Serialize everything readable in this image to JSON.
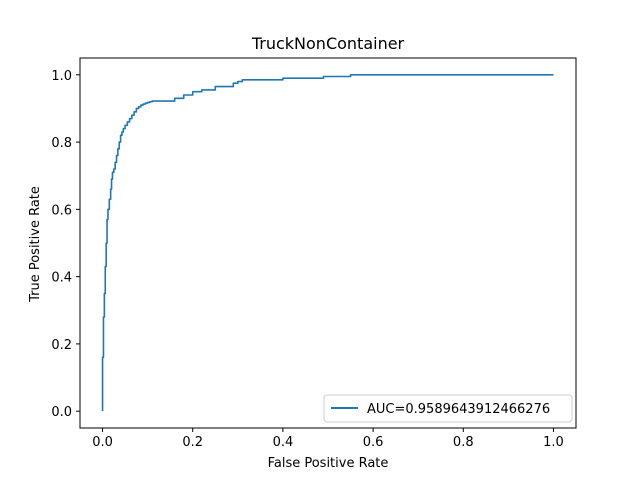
{
  "chart_data": {
    "type": "line",
    "title": "TruckNonContainer",
    "xlabel": "False Positive Rate",
    "ylabel": "True Positive Rate",
    "xlim": [
      -0.05,
      1.05
    ],
    "ylim": [
      -0.05,
      1.05
    ],
    "xticks": [
      0.0,
      0.2,
      0.4,
      0.6,
      0.8,
      1.0
    ],
    "yticks": [
      0.0,
      0.2,
      0.4,
      0.6,
      0.8,
      1.0
    ],
    "xtick_labels": [
      "0.0",
      "0.2",
      "0.4",
      "0.6",
      "0.8",
      "1.0"
    ],
    "ytick_labels": [
      "0.0",
      "0.2",
      "0.4",
      "0.6",
      "0.8",
      "1.0"
    ],
    "grid": false,
    "legend_position": "lower-right",
    "series": [
      {
        "name": "AUC=0.9589643912466276",
        "color": "#1f77b4",
        "x": [
          0.0,
          0.0,
          0.002,
          0.002,
          0.004,
          0.004,
          0.006,
          0.006,
          0.008,
          0.008,
          0.01,
          0.01,
          0.012,
          0.012,
          0.015,
          0.015,
          0.018,
          0.018,
          0.02,
          0.02,
          0.022,
          0.022,
          0.025,
          0.025,
          0.028,
          0.028,
          0.031,
          0.031,
          0.034,
          0.034,
          0.037,
          0.037,
          0.04,
          0.04,
          0.043,
          0.043,
          0.046,
          0.046,
          0.05,
          0.05,
          0.055,
          0.055,
          0.06,
          0.06,
          0.065,
          0.065,
          0.07,
          0.07,
          0.075,
          0.075,
          0.08,
          0.08,
          0.085,
          0.085,
          0.09,
          0.09,
          0.095,
          0.095,
          0.1,
          0.1,
          0.105,
          0.105,
          0.11,
          0.11,
          0.16,
          0.16,
          0.18,
          0.18,
          0.2,
          0.2,
          0.22,
          0.22,
          0.25,
          0.25,
          0.29,
          0.29,
          0.3,
          0.3,
          0.31,
          0.31,
          0.4,
          0.4,
          0.49,
          0.49,
          0.55,
          0.55,
          1.0
        ],
        "y": [
          0.0,
          0.16,
          0.16,
          0.28,
          0.28,
          0.35,
          0.35,
          0.43,
          0.43,
          0.5,
          0.5,
          0.57,
          0.57,
          0.6,
          0.6,
          0.63,
          0.63,
          0.66,
          0.66,
          0.69,
          0.69,
          0.71,
          0.71,
          0.72,
          0.72,
          0.74,
          0.74,
          0.76,
          0.76,
          0.78,
          0.78,
          0.8,
          0.8,
          0.82,
          0.82,
          0.83,
          0.83,
          0.84,
          0.84,
          0.85,
          0.85,
          0.86,
          0.86,
          0.87,
          0.87,
          0.88,
          0.88,
          0.89,
          0.89,
          0.9,
          0.9,
          0.905,
          0.905,
          0.91,
          0.91,
          0.913,
          0.913,
          0.916,
          0.916,
          0.918,
          0.918,
          0.92,
          0.92,
          0.922,
          0.922,
          0.93,
          0.93,
          0.94,
          0.94,
          0.95,
          0.95,
          0.955,
          0.955,
          0.965,
          0.965,
          0.975,
          0.975,
          0.98,
          0.98,
          0.985,
          0.985,
          0.99,
          0.99,
          0.995,
          0.995,
          1.0,
          1.0
        ]
      }
    ]
  }
}
